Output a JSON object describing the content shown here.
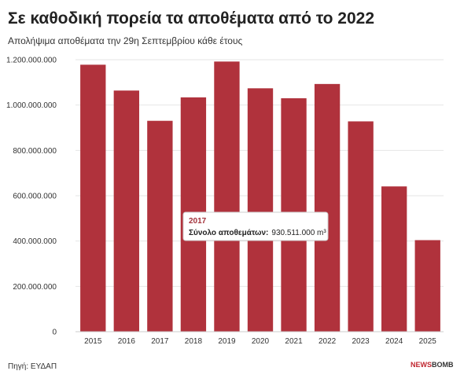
{
  "chart_data": {
    "type": "bar",
    "title": "Σε καθοδική πορεία τα αποθέματα από το 2022",
    "subtitle": "Απολήψιμα αποθέματα την 29η Σεπτεμβρίου κάθε έτους",
    "categories": [
      "2015",
      "2016",
      "2017",
      "2018",
      "2019",
      "2020",
      "2021",
      "2022",
      "2023",
      "2024",
      "2025"
    ],
    "values": [
      1178000000,
      1064000000,
      930511000,
      1034000000,
      1192000000,
      1074000000,
      1030000000,
      1093000000,
      928000000,
      641000000,
      404000000
    ],
    "ylim": [
      0,
      1200000000
    ],
    "yticks": [
      "0",
      "200.000.000",
      "400.000.000",
      "600.000.000",
      "800.000.000",
      "1.000.000.000",
      "1.200.000.000"
    ],
    "bar_color": "#b0323c",
    "grid": true,
    "legend": "none"
  },
  "tooltip": {
    "title": "2017",
    "label": "Σύνολο αποθεμάτων:",
    "value": "930.511.000 m³"
  },
  "footer": {
    "source": "Πηγή: ΕΥΔΑΠ",
    "brand_part1": "NEWS",
    "brand_part2": "BOMB"
  }
}
